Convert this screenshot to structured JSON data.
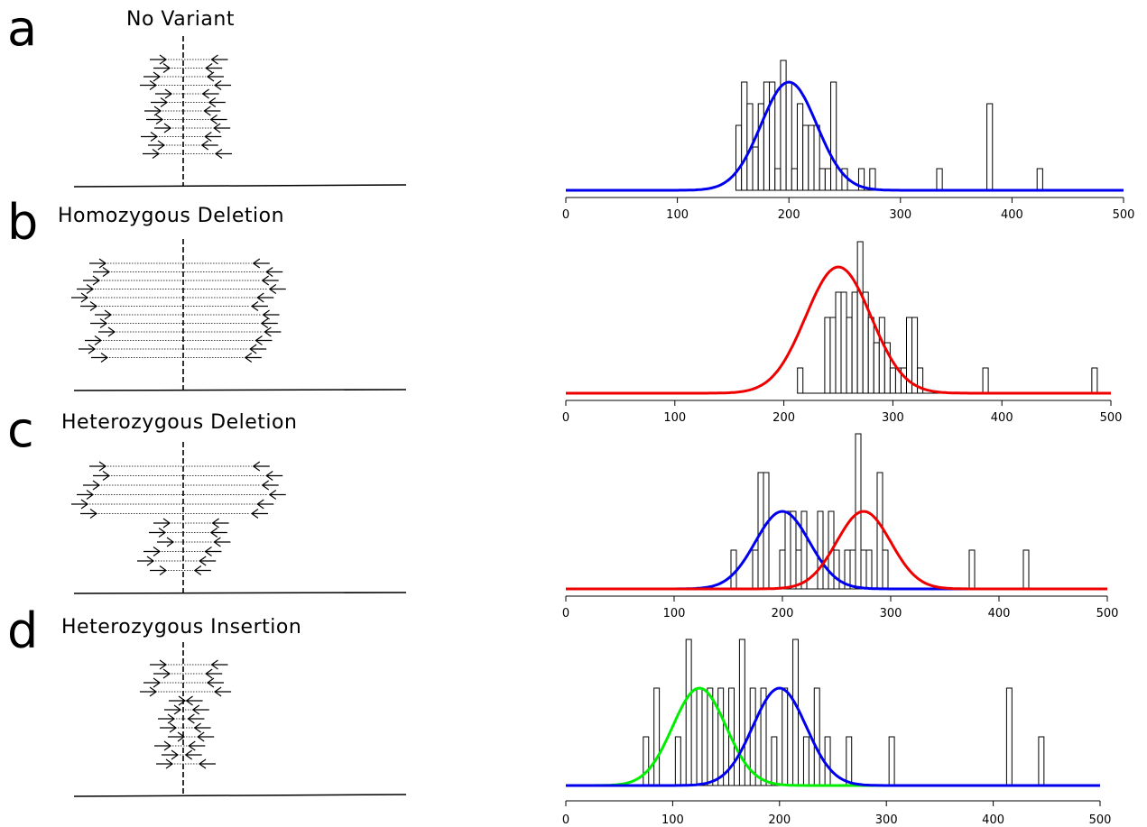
{
  "panels": [
    {
      "letter": "a",
      "title": "No Variant",
      "chart_data": {
        "type": "bar",
        "xlim": [
          0,
          500
        ],
        "xticks": [
          "0",
          "100",
          "200",
          "300",
          "400",
          "500"
        ],
        "bars": [
          {
            "x": 155,
            "h": 3
          },
          {
            "x": 160,
            "h": 5
          },
          {
            "x": 165,
            "h": 4
          },
          {
            "x": 170,
            "h": 2
          },
          {
            "x": 175,
            "h": 4
          },
          {
            "x": 180,
            "h": 5
          },
          {
            "x": 185,
            "h": 5
          },
          {
            "x": 190,
            "h": 1
          },
          {
            "x": 195,
            "h": 6
          },
          {
            "x": 200,
            "h": 5
          },
          {
            "x": 205,
            "h": 1
          },
          {
            "x": 210,
            "h": 4
          },
          {
            "x": 215,
            "h": 3
          },
          {
            "x": 220,
            "h": 3
          },
          {
            "x": 225,
            "h": 3
          },
          {
            "x": 230,
            "h": 1
          },
          {
            "x": 235,
            "h": 1
          },
          {
            "x": 240,
            "h": 5
          },
          {
            "x": 250,
            "h": 1
          },
          {
            "x": 265,
            "h": 1
          },
          {
            "x": 275,
            "h": 1
          },
          {
            "x": 335,
            "h": 1
          },
          {
            "x": 380,
            "h": 4
          },
          {
            "x": 425,
            "h": 1
          }
        ],
        "curves": [
          {
            "color": "#0000ee",
            "mean": 200,
            "sd": 25,
            "peak": 5
          }
        ]
      }
    },
    {
      "letter": "b",
      "title": "Homozygous Deletion",
      "chart_data": {
        "type": "bar",
        "xlim": [
          0,
          500
        ],
        "xticks": [
          "0",
          "100",
          "200",
          "300",
          "400",
          "500"
        ],
        "bars": [
          {
            "x": 215,
            "h": 1
          },
          {
            "x": 240,
            "h": 3
          },
          {
            "x": 245,
            "h": 3
          },
          {
            "x": 250,
            "h": 4
          },
          {
            "x": 255,
            "h": 4
          },
          {
            "x": 260,
            "h": 3
          },
          {
            "x": 265,
            "h": 4
          },
          {
            "x": 270,
            "h": 6
          },
          {
            "x": 275,
            "h": 4
          },
          {
            "x": 280,
            "h": 3
          },
          {
            "x": 285,
            "h": 2
          },
          {
            "x": 290,
            "h": 3
          },
          {
            "x": 295,
            "h": 2
          },
          {
            "x": 300,
            "h": 1
          },
          {
            "x": 305,
            "h": 1
          },
          {
            "x": 310,
            "h": 1
          },
          {
            "x": 315,
            "h": 3
          },
          {
            "x": 320,
            "h": 3
          },
          {
            "x": 325,
            "h": 1
          },
          {
            "x": 385,
            "h": 1
          },
          {
            "x": 485,
            "h": 1
          }
        ],
        "curves": [
          {
            "color": "#ee0000",
            "mean": 250,
            "sd": 30,
            "peak": 5
          }
        ]
      }
    },
    {
      "letter": "c",
      "title": "Heterozygous Deletion",
      "chart_data": {
        "type": "bar",
        "xlim": [
          0,
          500
        ],
        "xticks": [
          "0",
          "100",
          "200",
          "300",
          "400",
          "500"
        ],
        "bars": [
          {
            "x": 155,
            "h": 1
          },
          {
            "x": 175,
            "h": 1
          },
          {
            "x": 180,
            "h": 3
          },
          {
            "x": 185,
            "h": 3
          },
          {
            "x": 200,
            "h": 1
          },
          {
            "x": 205,
            "h": 2
          },
          {
            "x": 210,
            "h": 2
          },
          {
            "x": 215,
            "h": 1
          },
          {
            "x": 220,
            "h": 2
          },
          {
            "x": 235,
            "h": 2
          },
          {
            "x": 245,
            "h": 2
          },
          {
            "x": 250,
            "h": 1
          },
          {
            "x": 260,
            "h": 1
          },
          {
            "x": 265,
            "h": 1
          },
          {
            "x": 270,
            "h": 4
          },
          {
            "x": 275,
            "h": 1
          },
          {
            "x": 280,
            "h": 1
          },
          {
            "x": 290,
            "h": 3
          },
          {
            "x": 295,
            "h": 1
          },
          {
            "x": 375,
            "h": 1
          },
          {
            "x": 425,
            "h": 1
          }
        ],
        "curves": [
          {
            "color": "#0000ee",
            "mean": 200,
            "sd": 25,
            "peak": 2
          },
          {
            "color": "#ee0000",
            "mean": 275,
            "sd": 25,
            "peak": 2
          }
        ]
      }
    },
    {
      "letter": "d",
      "title": "Heterozygous Insertion",
      "chart_data": {
        "type": "bar",
        "xlim": [
          0,
          500
        ],
        "xticks": [
          "0",
          "100",
          "200",
          "300",
          "400",
          "500"
        ],
        "bars": [
          {
            "x": 75,
            "h": 1
          },
          {
            "x": 85,
            "h": 2
          },
          {
            "x": 105,
            "h": 1
          },
          {
            "x": 115,
            "h": 3
          },
          {
            "x": 125,
            "h": 2
          },
          {
            "x": 135,
            "h": 2
          },
          {
            "x": 145,
            "h": 2
          },
          {
            "x": 155,
            "h": 2
          },
          {
            "x": 165,
            "h": 3
          },
          {
            "x": 175,
            "h": 2
          },
          {
            "x": 185,
            "h": 2
          },
          {
            "x": 195,
            "h": 1
          },
          {
            "x": 205,
            "h": 2
          },
          {
            "x": 215,
            "h": 3
          },
          {
            "x": 225,
            "h": 1
          },
          {
            "x": 235,
            "h": 2
          },
          {
            "x": 245,
            "h": 1
          },
          {
            "x": 265,
            "h": 1
          },
          {
            "x": 305,
            "h": 1
          },
          {
            "x": 415,
            "h": 2
          },
          {
            "x": 445,
            "h": 1
          }
        ],
        "curves": [
          {
            "color": "#00ee00",
            "mean": 125,
            "sd": 25,
            "peak": 2
          },
          {
            "color": "#0000ee",
            "mean": 200,
            "sd": 25,
            "peak": 2
          }
        ]
      }
    }
  ]
}
